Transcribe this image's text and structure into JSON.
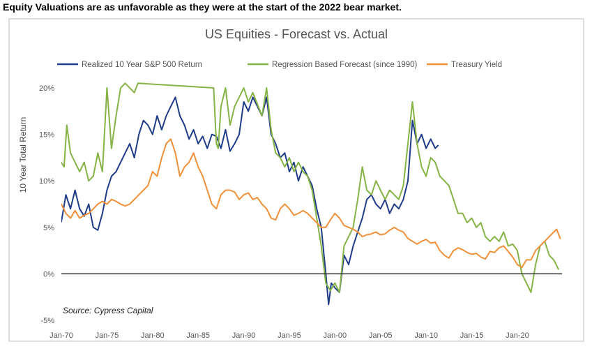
{
  "headline": "Equity Valuations are as unfavorable as they were at the start of the 2022 bear market.",
  "chart_data": {
    "type": "line",
    "title": "US Equities - Forecast vs. Actual",
    "ylabel": "10 Year Total Return",
    "ylim": [
      -5,
      20
    ],
    "xlim": [
      1970,
      2024.9
    ],
    "yticks": [
      {
        "value": -5,
        "label": "-5%"
      },
      {
        "value": 0,
        "label": "0%"
      },
      {
        "value": 5,
        "label": "5%"
      },
      {
        "value": 10,
        "label": "10%"
      },
      {
        "value": 15,
        "label": "15%"
      },
      {
        "value": 20,
        "label": "20%"
      }
    ],
    "xticks": [
      {
        "value": 1970,
        "label": "Jan-70"
      },
      {
        "value": 1975,
        "label": "Jan-75"
      },
      {
        "value": 1980,
        "label": "Jan-80"
      },
      {
        "value": 1985,
        "label": "Jan-85"
      },
      {
        "value": 1990,
        "label": "Jan-90"
      },
      {
        "value": 1995,
        "label": "Jan-95"
      },
      {
        "value": 2000,
        "label": "Jan-00"
      },
      {
        "value": 2005,
        "label": "Jan-05"
      },
      {
        "value": 2010,
        "label": "Jan-10"
      },
      {
        "value": 2015,
        "label": "Jan-15"
      },
      {
        "value": 2020,
        "label": "Jan-20"
      }
    ],
    "legend_position": "top",
    "grid": false,
    "annotation": "Source: Cypress Capital",
    "series": [
      {
        "name": "Realized 10 Year S&P 500 Return",
        "color": "#1f3c88",
        "points": [
          [
            1970,
            5.6
          ],
          [
            1970.5,
            8.5
          ],
          [
            1971,
            7
          ],
          [
            1971.5,
            9
          ],
          [
            1972,
            7
          ],
          [
            1972.5,
            6.2
          ],
          [
            1973,
            7.5
          ],
          [
            1973.5,
            5
          ],
          [
            1974,
            4.7
          ],
          [
            1974.5,
            6.5
          ],
          [
            1975,
            9
          ],
          [
            1975.5,
            10.5
          ],
          [
            1976,
            11
          ],
          [
            1976.5,
            12
          ],
          [
            1977,
            13
          ],
          [
            1977.5,
            14
          ],
          [
            1978,
            12.5
          ],
          [
            1978.5,
            15
          ],
          [
            1979,
            16.5
          ],
          [
            1979.5,
            16
          ],
          [
            1980,
            15
          ],
          [
            1980.5,
            17
          ],
          [
            1981,
            15.5
          ],
          [
            1981.5,
            17
          ],
          [
            1982,
            18
          ],
          [
            1982.5,
            19
          ],
          [
            1983,
            17
          ],
          [
            1983.5,
            16
          ],
          [
            1984,
            14.5
          ],
          [
            1984.5,
            15.5
          ],
          [
            1985,
            14
          ],
          [
            1985.5,
            14.8
          ],
          [
            1986,
            13.5
          ],
          [
            1986.5,
            15
          ],
          [
            1987,
            14.8
          ],
          [
            1987.5,
            13.5
          ],
          [
            1988,
            15.5
          ],
          [
            1988.5,
            13.2
          ],
          [
            1989,
            14
          ],
          [
            1989.5,
            15
          ],
          [
            1990,
            18.5
          ],
          [
            1990.5,
            17.5
          ],
          [
            1991,
            19
          ],
          [
            1991.5,
            18
          ],
          [
            1992,
            17
          ],
          [
            1992.5,
            19
          ],
          [
            1993,
            15
          ],
          [
            1993.5,
            14
          ],
          [
            1994,
            12.5
          ],
          [
            1994.5,
            13
          ],
          [
            1995,
            11
          ],
          [
            1995.5,
            12
          ],
          [
            1996,
            10
          ],
          [
            1996.5,
            11.5
          ],
          [
            1997,
            10.5
          ],
          [
            1997.5,
            9.5
          ],
          [
            1998,
            7
          ],
          [
            1998.5,
            5
          ],
          [
            1999,
            0
          ],
          [
            1999.3,
            -3.3
          ],
          [
            1999.6,
            -1
          ],
          [
            2000,
            -1.5
          ],
          [
            2000.5,
            -2
          ],
          [
            2001,
            2
          ],
          [
            2001.5,
            1
          ],
          [
            2002,
            3
          ],
          [
            2002.5,
            4.5
          ],
          [
            2003,
            6
          ],
          [
            2003.5,
            8
          ],
          [
            2004,
            8.5
          ],
          [
            2004.5,
            7.5
          ],
          [
            2005,
            7
          ],
          [
            2005.5,
            8
          ],
          [
            2006,
            6.5
          ],
          [
            2006.5,
            7.5
          ],
          [
            2007,
            7
          ],
          [
            2007.5,
            8
          ],
          [
            2008,
            10
          ],
          [
            2008.5,
            16.5
          ],
          [
            2009,
            14
          ],
          [
            2009.5,
            15
          ],
          [
            2010,
            13.5
          ],
          [
            2010.5,
            14.5
          ],
          [
            2011,
            13.5
          ],
          [
            2011.3,
            13.8
          ]
        ]
      },
      {
        "name": "Regression Based Forecast (since 1990)",
        "color": "#86b346",
        "points": [
          [
            1970,
            12
          ],
          [
            1970.3,
            11.5
          ],
          [
            1970.6,
            16
          ],
          [
            1971,
            13
          ],
          [
            1971.5,
            12
          ],
          [
            1972,
            11
          ],
          [
            1972.5,
            12
          ],
          [
            1973,
            10
          ],
          [
            1973.5,
            10.5
          ],
          [
            1974,
            13
          ],
          [
            1974.5,
            11
          ],
          [
            1975,
            20
          ],
          [
            1975.5,
            13.5
          ],
          [
            1976,
            17
          ],
          [
            1976.5,
            20
          ],
          [
            1977,
            20.5
          ],
          [
            1978,
            19.5
          ],
          [
            1978.4,
            20.5
          ],
          [
            1986.7,
            20
          ],
          [
            1987,
            14
          ],
          [
            1987.2,
            13.5
          ],
          [
            1987.5,
            18
          ],
          [
            1988,
            20
          ],
          [
            1988.5,
            16
          ],
          [
            1989,
            18
          ],
          [
            1989.5,
            19
          ],
          [
            1990,
            20
          ],
          [
            1990.5,
            18.5
          ],
          [
            1991,
            19.5
          ],
          [
            1992,
            17
          ],
          [
            1992.5,
            20
          ],
          [
            1993,
            15.5
          ],
          [
            1993.5,
            13
          ],
          [
            1994,
            12.5
          ],
          [
            1994.5,
            11.5
          ],
          [
            1995,
            12.5
          ],
          [
            1995.5,
            11
          ],
          [
            1996,
            12
          ],
          [
            1996.5,
            11
          ],
          [
            1997,
            10.5
          ],
          [
            1997.5,
            9
          ],
          [
            1998,
            6
          ],
          [
            1998.5,
            3
          ],
          [
            1999,
            -1
          ],
          [
            1999.5,
            -1.8
          ],
          [
            2000,
            -1
          ],
          [
            2000.5,
            -2
          ],
          [
            2001,
            3
          ],
          [
            2001.5,
            4
          ],
          [
            2002,
            5
          ],
          [
            2002.5,
            8
          ],
          [
            2003,
            11.5
          ],
          [
            2003.5,
            9
          ],
          [
            2004,
            8.5
          ],
          [
            2004.5,
            10
          ],
          [
            2005,
            9
          ],
          [
            2005.5,
            8
          ],
          [
            2006,
            9
          ],
          [
            2006.5,
            8.5
          ],
          [
            2007,
            8
          ],
          [
            2007.5,
            9.5
          ],
          [
            2008,
            14
          ],
          [
            2008.5,
            18.5
          ],
          [
            2009,
            14
          ],
          [
            2009.5,
            11.5
          ],
          [
            2010,
            10.5
          ],
          [
            2010.5,
            12.5
          ],
          [
            2011,
            12
          ],
          [
            2011.5,
            10.5
          ],
          [
            2012,
            10
          ],
          [
            2012.5,
            9.5
          ],
          [
            2013,
            8
          ],
          [
            2013.5,
            6.5
          ],
          [
            2014,
            6.5
          ],
          [
            2014.5,
            5.5
          ],
          [
            2015,
            6
          ],
          [
            2015.5,
            5
          ],
          [
            2016,
            5.5
          ],
          [
            2016.5,
            4
          ],
          [
            2017,
            3.5
          ],
          [
            2017.5,
            4
          ],
          [
            2018,
            3.5
          ],
          [
            2018.5,
            4.5
          ],
          [
            2019,
            3
          ],
          [
            2019.5,
            3.2
          ],
          [
            2020,
            2.5
          ],
          [
            2020.5,
            0
          ],
          [
            2021,
            -1
          ],
          [
            2021.5,
            -2
          ],
          [
            2022,
            1
          ],
          [
            2022.5,
            3
          ],
          [
            2023,
            3.5
          ],
          [
            2023.5,
            2
          ],
          [
            2024,
            1.5
          ],
          [
            2024.5,
            0.5
          ]
        ]
      },
      {
        "name": "Treasury Yield",
        "color": "#f0913a",
        "points": [
          [
            1970,
            7.5
          ],
          [
            1970.5,
            6.5
          ],
          [
            1971,
            6
          ],
          [
            1971.5,
            6.8
          ],
          [
            1972,
            6
          ],
          [
            1972.5,
            6.3
          ],
          [
            1973,
            6.5
          ],
          [
            1973.5,
            7
          ],
          [
            1974,
            7.5
          ],
          [
            1974.5,
            7.8
          ],
          [
            1975,
            7.5
          ],
          [
            1975.5,
            8
          ],
          [
            1976,
            7.8
          ],
          [
            1976.5,
            7.5
          ],
          [
            1977,
            7.3
          ],
          [
            1977.5,
            7.5
          ],
          [
            1978,
            8
          ],
          [
            1978.5,
            8.5
          ],
          [
            1979,
            9
          ],
          [
            1979.5,
            9.5
          ],
          [
            1980,
            11
          ],
          [
            1980.5,
            10.5
          ],
          [
            1981,
            12.5
          ],
          [
            1981.5,
            14
          ],
          [
            1982,
            14.5
          ],
          [
            1982.5,
            13
          ],
          [
            1983,
            10.5
          ],
          [
            1983.5,
            11.5
          ],
          [
            1984,
            12
          ],
          [
            1984.5,
            13
          ],
          [
            1985,
            11.5
          ],
          [
            1985.5,
            10.5
          ],
          [
            1986,
            9
          ],
          [
            1986.5,
            7.5
          ],
          [
            1987,
            7
          ],
          [
            1987.5,
            8.5
          ],
          [
            1988,
            9
          ],
          [
            1988.5,
            9
          ],
          [
            1989,
            8.8
          ],
          [
            1989.5,
            8
          ],
          [
            1990,
            8.5
          ],
          [
            1990.5,
            8.7
          ],
          [
            1991,
            8
          ],
          [
            1991.5,
            8.2
          ],
          [
            1992,
            7.5
          ],
          [
            1992.5,
            7
          ],
          [
            1993,
            6
          ],
          [
            1993.5,
            5.8
          ],
          [
            1994,
            7
          ],
          [
            1994.5,
            7.5
          ],
          [
            1995,
            7
          ],
          [
            1995.5,
            6.3
          ],
          [
            1996,
            6.5
          ],
          [
            1996.5,
            6.8
          ],
          [
            1997,
            6.5
          ],
          [
            1997.5,
            6
          ],
          [
            1998,
            5.5
          ],
          [
            1998.5,
            5
          ],
          [
            1999,
            5
          ],
          [
            1999.5,
            5.8
          ],
          [
            2000,
            6.5
          ],
          [
            2000.5,
            6
          ],
          [
            2001,
            5.2
          ],
          [
            2001.5,
            5
          ],
          [
            2002,
            4.8
          ],
          [
            2002.5,
            4.5
          ],
          [
            2003,
            4
          ],
          [
            2003.5,
            4.2
          ],
          [
            2004,
            4.3
          ],
          [
            2004.5,
            4.5
          ],
          [
            2005,
            4.2
          ],
          [
            2005.5,
            4.3
          ],
          [
            2006,
            4.7
          ],
          [
            2006.5,
            5
          ],
          [
            2007,
            4.7
          ],
          [
            2007.5,
            4.5
          ],
          [
            2008,
            3.8
          ],
          [
            2008.5,
            3.5
          ],
          [
            2009,
            3.2
          ],
          [
            2009.5,
            3.5
          ],
          [
            2010,
            3.7
          ],
          [
            2010.5,
            3.3
          ],
          [
            2011,
            3.4
          ],
          [
            2011.5,
            2.5
          ],
          [
            2012,
            2
          ],
          [
            2012.5,
            1.7
          ],
          [
            2013,
            2.5
          ],
          [
            2013.5,
            2.8
          ],
          [
            2014,
            2.6
          ],
          [
            2014.5,
            2.3
          ],
          [
            2015,
            2.1
          ],
          [
            2015.5,
            2.2
          ],
          [
            2016,
            1.8
          ],
          [
            2016.5,
            1.6
          ],
          [
            2017,
            2.4
          ],
          [
            2017.5,
            2.3
          ],
          [
            2018,
            2.8
          ],
          [
            2018.5,
            3
          ],
          [
            2019,
            2.4
          ],
          [
            2019.5,
            1.8
          ],
          [
            2020,
            1
          ],
          [
            2020.5,
            0.7
          ],
          [
            2021,
            1.5
          ],
          [
            2021.5,
            1.5
          ],
          [
            2022,
            2.5
          ],
          [
            2022.5,
            3
          ],
          [
            2023,
            3.5
          ],
          [
            2023.5,
            4
          ],
          [
            2024,
            4.5
          ],
          [
            2024.3,
            4.8
          ],
          [
            2024.7,
            3.8
          ]
        ]
      }
    ]
  }
}
